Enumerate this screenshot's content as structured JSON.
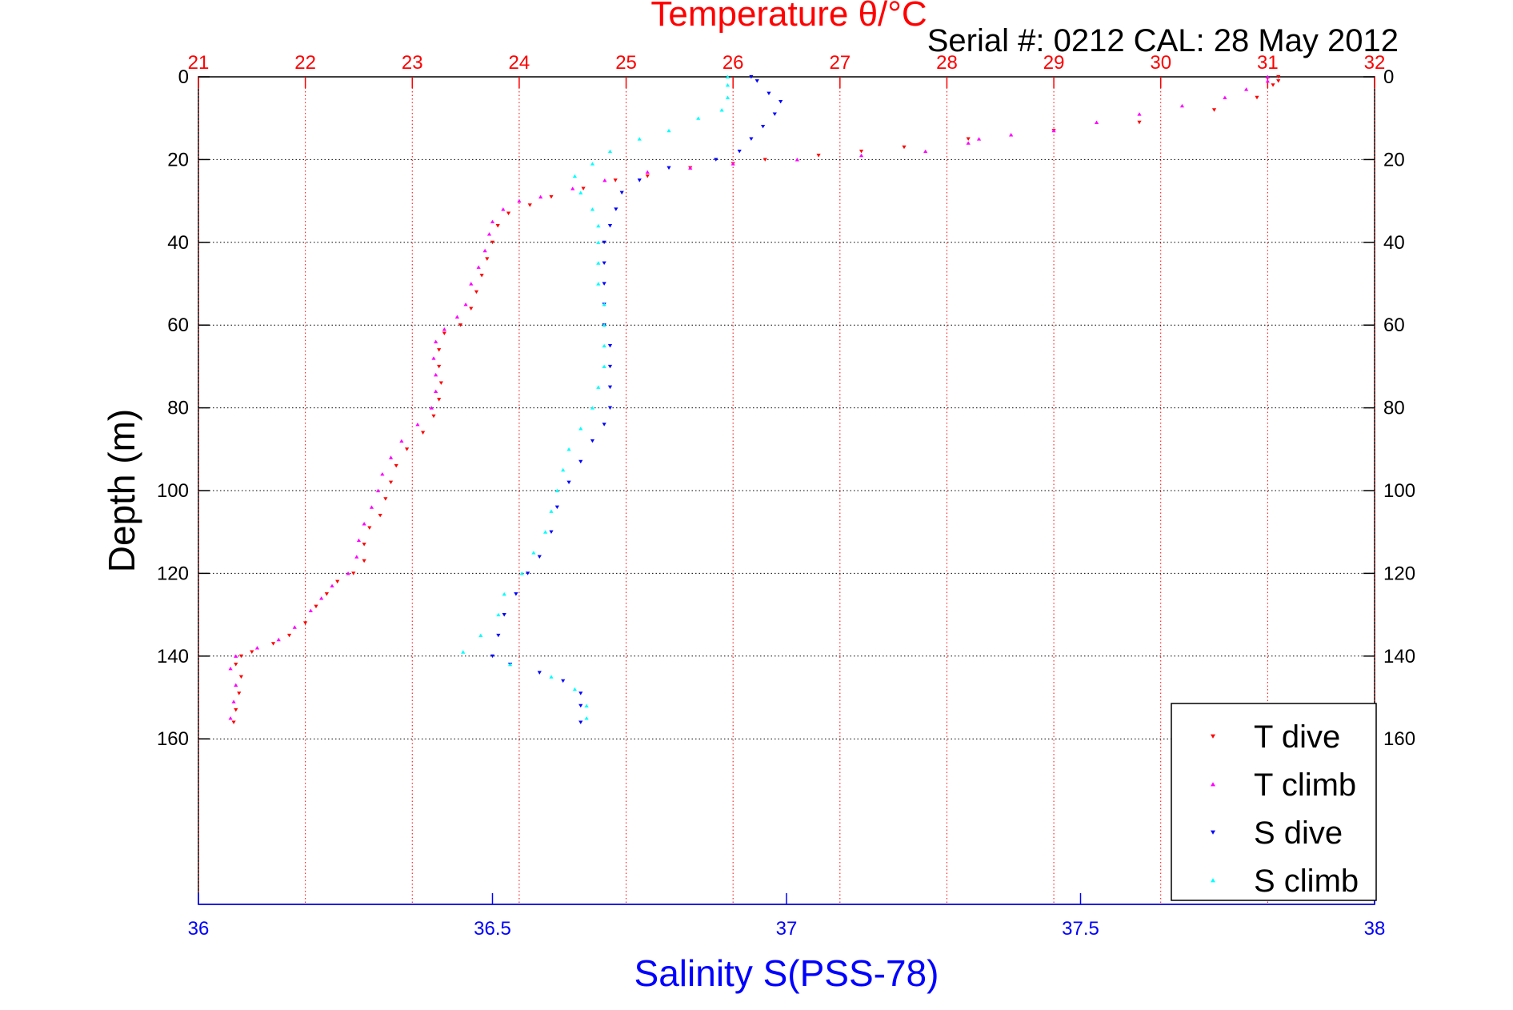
{
  "chart_data": {
    "type": "scatter",
    "title": "Temperature θ/°C",
    "subtitle": "Serial #: 0212  CAL: 28 May 2012",
    "xlabel": "Salinity S(PSS-78)",
    "ylabel": "Depth (m)",
    "x_top": {
      "label": "Temperature θ/°C",
      "lim": [
        21,
        32
      ],
      "ticks": [
        "21",
        "22",
        "23",
        "24",
        "25",
        "26",
        "27",
        "28",
        "29",
        "30",
        "31",
        "32"
      ],
      "color": "#ff0000"
    },
    "x_bottom": {
      "label": "Salinity S(PSS-78)",
      "lim": [
        36,
        38
      ],
      "ticks": [
        "36",
        "36.5",
        "37",
        "37.5",
        "38"
      ],
      "color": "#0000ff"
    },
    "y": {
      "lim": [
        0,
        200
      ],
      "reversed": true,
      "ticks": [
        "0",
        "20",
        "40",
        "60",
        "80",
        "100",
        "120",
        "140",
        "160"
      ]
    },
    "grid": true,
    "legend": "bottom-right",
    "series": [
      {
        "name": "T dive",
        "axis": "top",
        "color": "#ff0000",
        "marker": "triangle-down",
        "points": [
          [
            31.1,
            0
          ],
          [
            31.1,
            1
          ],
          [
            31.05,
            2
          ],
          [
            30.9,
            5
          ],
          [
            30.5,
            8
          ],
          [
            29.8,
            11
          ],
          [
            29.0,
            13
          ],
          [
            28.2,
            15
          ],
          [
            27.6,
            17
          ],
          [
            27.2,
            18
          ],
          [
            26.8,
            19
          ],
          [
            26.3,
            20
          ],
          [
            26.0,
            21
          ],
          [
            25.6,
            22
          ],
          [
            25.2,
            24
          ],
          [
            24.9,
            25
          ],
          [
            24.6,
            27
          ],
          [
            24.3,
            29
          ],
          [
            24.1,
            31
          ],
          [
            23.9,
            33
          ],
          [
            23.8,
            36
          ],
          [
            23.75,
            40
          ],
          [
            23.7,
            44
          ],
          [
            23.65,
            48
          ],
          [
            23.6,
            52
          ],
          [
            23.55,
            56
          ],
          [
            23.45,
            60
          ],
          [
            23.3,
            62
          ],
          [
            23.25,
            66
          ],
          [
            23.25,
            70
          ],
          [
            23.27,
            74
          ],
          [
            23.25,
            78
          ],
          [
            23.2,
            82
          ],
          [
            23.1,
            86
          ],
          [
            22.95,
            90
          ],
          [
            22.85,
            94
          ],
          [
            22.8,
            98
          ],
          [
            22.75,
            102
          ],
          [
            22.7,
            106
          ],
          [
            22.6,
            109
          ],
          [
            22.55,
            113
          ],
          [
            22.55,
            117
          ],
          [
            22.45,
            120
          ],
          [
            22.3,
            122
          ],
          [
            22.2,
            125
          ],
          [
            22.1,
            128
          ],
          [
            22.0,
            132
          ],
          [
            21.85,
            135
          ],
          [
            21.7,
            137
          ],
          [
            21.5,
            139
          ],
          [
            21.4,
            140
          ],
          [
            21.35,
            142
          ],
          [
            21.4,
            145
          ],
          [
            21.38,
            149
          ],
          [
            21.35,
            153
          ],
          [
            21.33,
            156
          ]
        ]
      },
      {
        "name": "T climb",
        "axis": "top",
        "color": "#ff00ff",
        "marker": "triangle-up",
        "points": [
          [
            31.0,
            0
          ],
          [
            31.0,
            1
          ],
          [
            30.8,
            3
          ],
          [
            30.6,
            5
          ],
          [
            30.2,
            7
          ],
          [
            29.8,
            9
          ],
          [
            29.4,
            11
          ],
          [
            29.0,
            13
          ],
          [
            28.6,
            14
          ],
          [
            28.3,
            15
          ],
          [
            28.2,
            16
          ],
          [
            27.8,
            18
          ],
          [
            27.2,
            19
          ],
          [
            26.6,
            20
          ],
          [
            26.0,
            21
          ],
          [
            25.6,
            22
          ],
          [
            25.2,
            23
          ],
          [
            24.8,
            25
          ],
          [
            24.5,
            27
          ],
          [
            24.2,
            29
          ],
          [
            24.0,
            30
          ],
          [
            23.85,
            32
          ],
          [
            23.75,
            35
          ],
          [
            23.72,
            38
          ],
          [
            23.68,
            42
          ],
          [
            23.62,
            46
          ],
          [
            23.55,
            50
          ],
          [
            23.5,
            55
          ],
          [
            23.42,
            58
          ],
          [
            23.3,
            61
          ],
          [
            23.22,
            64
          ],
          [
            23.2,
            68
          ],
          [
            23.22,
            72
          ],
          [
            23.22,
            76
          ],
          [
            23.18,
            80
          ],
          [
            23.05,
            84
          ],
          [
            22.9,
            88
          ],
          [
            22.8,
            92
          ],
          [
            22.72,
            96
          ],
          [
            22.68,
            100
          ],
          [
            22.62,
            104
          ],
          [
            22.55,
            108
          ],
          [
            22.5,
            112
          ],
          [
            22.48,
            116
          ],
          [
            22.4,
            120
          ],
          [
            22.25,
            123
          ],
          [
            22.15,
            126
          ],
          [
            22.05,
            129
          ],
          [
            21.9,
            133
          ],
          [
            21.75,
            136
          ],
          [
            21.55,
            138
          ],
          [
            21.35,
            140
          ],
          [
            21.3,
            143
          ],
          [
            21.35,
            147
          ],
          [
            21.33,
            151
          ],
          [
            21.3,
            155
          ]
        ]
      },
      {
        "name": "S dive",
        "axis": "bottom",
        "color": "#0000ff",
        "marker": "triangle-down",
        "points": [
          [
            36.94,
            0
          ],
          [
            36.95,
            1
          ],
          [
            36.97,
            4
          ],
          [
            36.99,
            6
          ],
          [
            36.98,
            9
          ],
          [
            36.96,
            12
          ],
          [
            36.94,
            15
          ],
          [
            36.92,
            18
          ],
          [
            36.88,
            20
          ],
          [
            36.8,
            22
          ],
          [
            36.75,
            25
          ],
          [
            36.72,
            28
          ],
          [
            36.71,
            32
          ],
          [
            36.7,
            36
          ],
          [
            36.69,
            40
          ],
          [
            36.69,
            45
          ],
          [
            36.69,
            50
          ],
          [
            36.69,
            55
          ],
          [
            36.69,
            60
          ],
          [
            36.7,
            65
          ],
          [
            36.7,
            70
          ],
          [
            36.7,
            75
          ],
          [
            36.7,
            80
          ],
          [
            36.69,
            84
          ],
          [
            36.67,
            88
          ],
          [
            36.65,
            93
          ],
          [
            36.63,
            98
          ],
          [
            36.61,
            104
          ],
          [
            36.6,
            110
          ],
          [
            36.58,
            116
          ],
          [
            36.56,
            120
          ],
          [
            36.54,
            125
          ],
          [
            36.52,
            130
          ],
          [
            36.51,
            135
          ],
          [
            36.5,
            140
          ],
          [
            36.53,
            142
          ],
          [
            36.58,
            144
          ],
          [
            36.62,
            146
          ],
          [
            36.65,
            149
          ],
          [
            36.65,
            152
          ],
          [
            36.65,
            156
          ]
        ]
      },
      {
        "name": "S climb",
        "axis": "bottom",
        "color": "#00ffff",
        "marker": "triangle-up",
        "points": [
          [
            36.9,
            0
          ],
          [
            36.9,
            2
          ],
          [
            36.9,
            5
          ],
          [
            36.89,
            8
          ],
          [
            36.85,
            10
          ],
          [
            36.8,
            13
          ],
          [
            36.75,
            15
          ],
          [
            36.7,
            18
          ],
          [
            36.67,
            21
          ],
          [
            36.64,
            24
          ],
          [
            36.65,
            28
          ],
          [
            36.67,
            32
          ],
          [
            36.68,
            36
          ],
          [
            36.68,
            40
          ],
          [
            36.68,
            45
          ],
          [
            36.68,
            50
          ],
          [
            36.69,
            55
          ],
          [
            36.69,
            60
          ],
          [
            36.69,
            65
          ],
          [
            36.69,
            70
          ],
          [
            36.68,
            75
          ],
          [
            36.67,
            80
          ],
          [
            36.65,
            85
          ],
          [
            36.63,
            90
          ],
          [
            36.62,
            95
          ],
          [
            36.61,
            100
          ],
          [
            36.6,
            105
          ],
          [
            36.59,
            110
          ],
          [
            36.57,
            115
          ],
          [
            36.55,
            120
          ],
          [
            36.52,
            125
          ],
          [
            36.51,
            130
          ],
          [
            36.48,
            135
          ],
          [
            36.45,
            139
          ],
          [
            36.53,
            142
          ],
          [
            36.6,
            145
          ],
          [
            36.64,
            148
          ],
          [
            36.66,
            152
          ],
          [
            36.66,
            155
          ]
        ]
      }
    ]
  }
}
